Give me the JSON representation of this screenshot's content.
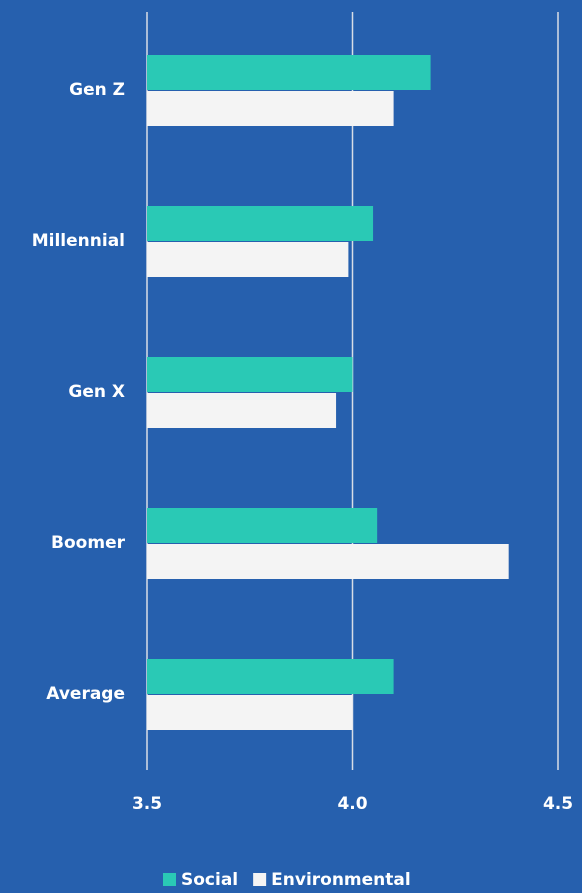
{
  "chart_data": {
    "type": "hbar",
    "categories": [
      "Gen Z",
      "Millennial",
      "Gen X",
      "Boomer",
      "Average"
    ],
    "series": [
      {
        "name": "Social",
        "color": "#2ac9b5",
        "values": [
          4.19,
          4.05,
          4.0,
          4.06,
          4.1
        ]
      },
      {
        "name": "Environmental",
        "color": "#f4f4f4",
        "values": [
          4.1,
          3.99,
          3.96,
          4.38,
          4.0
        ]
      }
    ],
    "xlim": [
      3.5,
      4.5
    ],
    "xticks": [
      3.5,
      {
        "value": 4.0,
        "label": "4.0"
      },
      4.5
    ],
    "grid": true,
    "legend": "bottom"
  }
}
